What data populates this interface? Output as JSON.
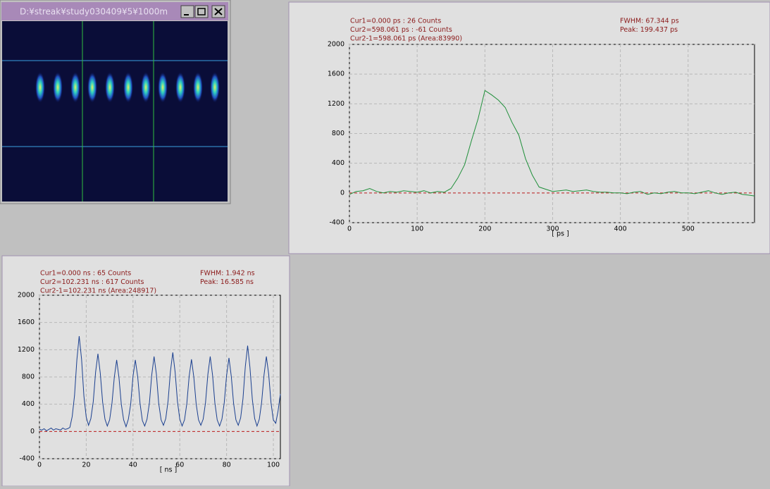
{
  "window": {
    "title": "D:¥streak¥study030409¥5¥1000m"
  },
  "chart_data": [
    {
      "type": "line",
      "color": "#1f8f3a",
      "cursor_lines": [
        "Cur1=0.000 ps  : 26 Counts",
        "Cur2=598.061 ps  : -61 Counts",
        "Cur2-1=598.061 ps (Area:83990)"
      ],
      "fwhm": "FWHM: 67.344 ps",
      "peak": "Peak: 199.437 ps",
      "x_label": "[ ps ]",
      "x": [
        0,
        10,
        20,
        30,
        40,
        50,
        60,
        70,
        80,
        90,
        100,
        110,
        120,
        130,
        140,
        150,
        160,
        170,
        180,
        190,
        200,
        210,
        220,
        230,
        240,
        250,
        260,
        270,
        280,
        290,
        300,
        310,
        320,
        330,
        340,
        350,
        360,
        370,
        380,
        390,
        400,
        410,
        420,
        430,
        440,
        450,
        460,
        470,
        480,
        490,
        500,
        510,
        520,
        530,
        540,
        550,
        560,
        570,
        580,
        590,
        598
      ],
      "values": [
        -20,
        20,
        30,
        60,
        20,
        0,
        20,
        10,
        30,
        20,
        10,
        30,
        0,
        20,
        10,
        60,
        200,
        380,
        700,
        1000,
        1380,
        1320,
        1250,
        1150,
        950,
        780,
        460,
        240,
        80,
        50,
        20,
        30,
        40,
        20,
        30,
        40,
        20,
        10,
        10,
        0,
        0,
        -10,
        10,
        20,
        -20,
        0,
        -10,
        10,
        20,
        0,
        0,
        -10,
        10,
        30,
        0,
        -20,
        0,
        10,
        -20,
        -30,
        -40
      ],
      "xlim": [
        0,
        598
      ],
      "ylim": [
        -400,
        2000
      ],
      "xticks": [
        0,
        100,
        200,
        300,
        400,
        500
      ],
      "yticks": [
        -400,
        0,
        400,
        800,
        1200,
        1600,
        2000
      ],
      "grid": true
    },
    {
      "type": "line",
      "color": "#1a3f8f",
      "cursor_lines": [
        "Cur1=0.000 ns  : 65 Counts",
        "Cur2=102.231 ns  : 617 Counts",
        "Cur2-1=102.231 ns (Area:248917)"
      ],
      "fwhm": "FWHM: 1.942 ns",
      "peak": "Peak: 16.585 ns",
      "x_label": "[ ns ]",
      "x": [
        0,
        1,
        2,
        3,
        4,
        5,
        6,
        7,
        8,
        9,
        10,
        11,
        12,
        13,
        14,
        15,
        16,
        17,
        18,
        19,
        20,
        21,
        22,
        23,
        24,
        25,
        26,
        27,
        28,
        29,
        30,
        31,
        32,
        33,
        34,
        35,
        36,
        37,
        38,
        39,
        40,
        41,
        42,
        43,
        44,
        45,
        46,
        47,
        48,
        49,
        50,
        51,
        52,
        53,
        54,
        55,
        56,
        57,
        58,
        59,
        60,
        61,
        62,
        63,
        64,
        65,
        66,
        67,
        68,
        69,
        70,
        71,
        72,
        73,
        74,
        75,
        76,
        77,
        78,
        79,
        80,
        81,
        82,
        83,
        84,
        85,
        86,
        87,
        88,
        89,
        90,
        91,
        92,
        93,
        94,
        95,
        96,
        97,
        98,
        99,
        100,
        101,
        102,
        103
      ],
      "values": [
        30,
        20,
        40,
        10,
        30,
        50,
        20,
        40,
        30,
        20,
        50,
        30,
        40,
        60,
        220,
        530,
        1050,
        1400,
        1060,
        520,
        210,
        90,
        190,
        440,
        870,
        1140,
        860,
        430,
        180,
        80,
        170,
        410,
        800,
        1050,
        790,
        400,
        170,
        70,
        180,
        400,
        810,
        1050,
        800,
        410,
        160,
        80,
        180,
        420,
        830,
        1100,
        840,
        410,
        170,
        90,
        190,
        450,
        880,
        1160,
        870,
        440,
        180,
        80,
        170,
        410,
        810,
        1060,
        800,
        400,
        170,
        90,
        180,
        420,
        840,
        1100,
        830,
        420,
        170,
        80,
        180,
        420,
        820,
        1080,
        810,
        410,
        170,
        90,
        200,
        480,
        950,
        1260,
        940,
        470,
        190,
        80,
        180,
        430,
        830,
        1100,
        840,
        420,
        170,
        120,
        300,
        550
      ],
      "xlim": [
        0,
        103
      ],
      "ylim": [
        -400,
        2000
      ],
      "xticks": [
        0,
        20,
        40,
        60,
        80,
        100
      ],
      "yticks": [
        -400,
        0,
        400,
        800,
        1200,
        1600,
        2000
      ],
      "grid": true
    }
  ]
}
